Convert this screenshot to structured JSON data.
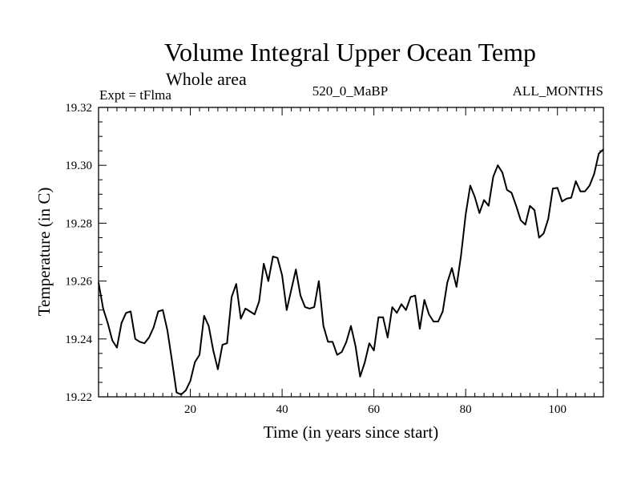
{
  "chart_data": {
    "type": "line",
    "title": "Volume Integral Upper Ocean Temp",
    "subtitle": "Whole area",
    "left_label": "Expt = tFlma",
    "center_label": "520_0_MaBP",
    "right_label": "ALL_MONTHS",
    "xlabel": "Time (in years since start)",
    "ylabel": "Temperature (in C)",
    "xlim": [
      0,
      110
    ],
    "ylim": [
      19.22,
      19.32
    ],
    "x_ticks": [
      20,
      40,
      60,
      80,
      100
    ],
    "x_tick_labels": [
      "20",
      "40",
      "60",
      "80",
      "100"
    ],
    "y_ticks": [
      19.22,
      19.24,
      19.26,
      19.28,
      19.3,
      19.32
    ],
    "y_tick_labels": [
      "19.22",
      "19.24",
      "19.26",
      "19.28",
      "19.30",
      "19.32"
    ],
    "series": [
      {
        "name": "Temperature",
        "color": "#000000",
        "x": [
          0,
          1,
          2,
          3,
          4,
          5,
          6,
          7,
          8,
          9,
          10,
          11,
          12,
          13,
          14,
          15,
          16,
          17,
          18,
          19,
          20,
          21,
          22,
          23,
          24,
          25,
          26,
          27,
          28,
          29,
          30,
          31,
          32,
          33,
          34,
          35,
          36,
          37,
          38,
          39,
          40,
          41,
          42,
          43,
          44,
          45,
          46,
          47,
          48,
          49,
          50,
          51,
          52,
          53,
          54,
          55,
          56,
          57,
          58,
          59,
          60,
          61,
          62,
          63,
          64,
          65,
          66,
          67,
          68,
          69,
          70,
          71,
          72,
          73,
          74,
          75,
          76,
          77,
          78,
          79,
          80,
          81,
          82,
          83,
          84,
          85,
          86,
          87,
          88,
          89,
          90,
          91,
          92,
          93,
          94,
          95,
          96,
          97,
          98,
          99,
          100,
          101,
          102,
          103,
          104,
          105,
          106,
          107,
          108,
          109,
          110
        ],
        "values": [
          19.2595,
          19.2505,
          19.2455,
          19.2395,
          19.237,
          19.2455,
          19.249,
          19.2495,
          19.24,
          19.239,
          19.2385,
          19.2405,
          19.244,
          19.2495,
          19.25,
          19.243,
          19.2325,
          19.2215,
          19.2208,
          19.2222,
          19.2255,
          19.232,
          19.2345,
          19.248,
          19.2445,
          19.236,
          19.2295,
          19.238,
          19.2385,
          19.2545,
          19.259,
          19.247,
          19.2505,
          19.2495,
          19.2485,
          19.253,
          19.266,
          19.26,
          19.2685,
          19.268,
          19.262,
          19.25,
          19.257,
          19.264,
          19.255,
          19.251,
          19.2505,
          19.251,
          19.26,
          19.2445,
          19.239,
          19.239,
          19.2345,
          19.2355,
          19.239,
          19.2445,
          19.2375,
          19.227,
          19.2318,
          19.2385,
          19.236,
          19.2475,
          19.2475,
          19.2405,
          19.251,
          19.249,
          19.252,
          19.25,
          19.2545,
          19.255,
          19.2435,
          19.2535,
          19.2485,
          19.246,
          19.246,
          19.2495,
          19.2595,
          19.2645,
          19.258,
          19.269,
          19.283,
          19.293,
          19.289,
          19.2835,
          19.288,
          19.286,
          19.296,
          19.3,
          19.2975,
          19.2915,
          19.2905,
          19.286,
          19.281,
          19.2795,
          19.286,
          19.2845,
          19.275,
          19.2765,
          19.2815,
          19.292,
          19.2922,
          19.2875,
          19.2885,
          19.2888,
          19.2945,
          19.291,
          19.291,
          19.293,
          19.297,
          19.304,
          19.3055
        ]
      }
    ]
  }
}
